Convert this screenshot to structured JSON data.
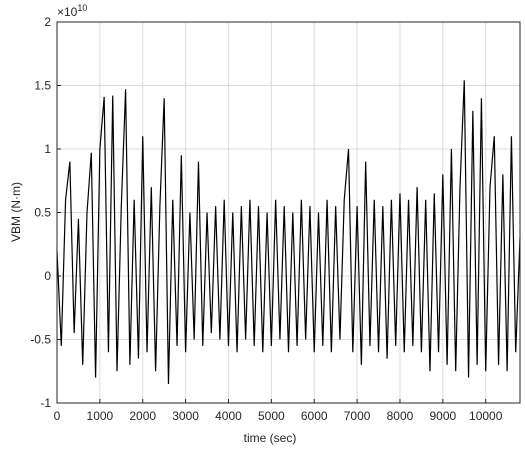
{
  "chart_data": {
    "type": "line",
    "x_label": "time (sec)",
    "y_label": "VBM (N·m)",
    "y_multiplier": {
      "base": "×10",
      "exponent": "10"
    },
    "xlim": [
      0,
      10800
    ],
    "xticks": [
      0,
      1000,
      2000,
      3000,
      4000,
      5000,
      6000,
      7000,
      8000,
      9000,
      10000
    ],
    "ylim": [
      -1,
      2
    ],
    "yticks": [
      -1,
      -0.5,
      0,
      0.5,
      1,
      1.5,
      2
    ],
    "grid": true,
    "series": [
      {
        "color": "#000000",
        "x": [
          0,
          100,
          200,
          300,
          400,
          500,
          600,
          700,
          800,
          900,
          1000,
          1100,
          1200,
          1300,
          1400,
          1500,
          1600,
          1700,
          1800,
          1900,
          2000,
          2100,
          2200,
          2300,
          2400,
          2500,
          2600,
          2700,
          2800,
          2900,
          3000,
          3100,
          3200,
          3300,
          3400,
          3500,
          3600,
          3700,
          3800,
          3900,
          4000,
          4100,
          4200,
          4300,
          4400,
          4500,
          4600,
          4700,
          4800,
          4900,
          5000,
          5100,
          5200,
          5300,
          5400,
          5500,
          5600,
          5700,
          5800,
          5900,
          6000,
          6100,
          6200,
          6300,
          6400,
          6500,
          6600,
          6700,
          6800,
          6900,
          7000,
          7100,
          7200,
          7300,
          7400,
          7500,
          7600,
          7700,
          7800,
          7900,
          8000,
          8100,
          8200,
          8300,
          8400,
          8500,
          8600,
          8700,
          8800,
          8900,
          9000,
          9100,
          9200,
          9300,
          9400,
          9500,
          9600,
          9700,
          9800,
          9900,
          10000,
          10100,
          10200,
          10300,
          10400,
          10500,
          10600,
          10700,
          10800
        ],
        "values": [
          0.2,
          -0.55,
          0.6,
          0.9,
          -0.45,
          0.45,
          -0.7,
          0.5,
          0.97,
          -0.8,
          1.0,
          1.41,
          -0.6,
          1.42,
          -0.75,
          0.55,
          1.47,
          -0.7,
          0.6,
          -0.65,
          1.1,
          -0.6,
          0.7,
          -0.75,
          0.55,
          1.4,
          -0.85,
          0.6,
          -0.55,
          0.95,
          -0.6,
          0.5,
          -0.5,
          0.9,
          -0.55,
          0.5,
          -0.45,
          0.55,
          -0.5,
          0.6,
          -0.55,
          0.5,
          -0.6,
          0.55,
          -0.5,
          0.6,
          -0.55,
          0.55,
          -0.6,
          0.5,
          -0.55,
          0.6,
          -0.5,
          0.55,
          -0.6,
          0.5,
          -0.55,
          0.6,
          -0.5,
          0.55,
          -0.6,
          0.5,
          -0.55,
          0.6,
          -0.6,
          0.55,
          -0.5,
          0.6,
          1.0,
          -0.6,
          0.55,
          -0.7,
          0.9,
          -0.55,
          0.6,
          -0.6,
          0.55,
          -0.65,
          0.6,
          -0.55,
          0.65,
          -0.6,
          0.6,
          -0.55,
          0.7,
          -0.6,
          0.6,
          -0.75,
          0.65,
          -0.6,
          0.8,
          -0.7,
          1.0,
          -0.75,
          0.7,
          1.54,
          -0.8,
          1.3,
          -0.7,
          1.4,
          -0.75,
          0.7,
          1.1,
          -0.7,
          0.8,
          -0.75,
          1.1,
          -0.6,
          0.3
        ]
      }
    ]
  }
}
